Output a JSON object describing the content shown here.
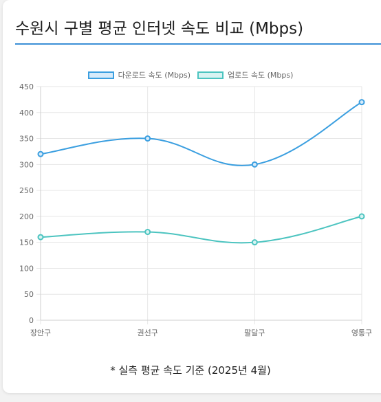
{
  "title": "수원시 구별 평균 인터넷 속도 비교 (Mbps)",
  "footnote": "* 실측 평균 속도 기준 (2025년 4월)",
  "chart_data": {
    "type": "line",
    "categories": [
      "장안구",
      "권선구",
      "팔달구",
      "영통구"
    ],
    "series": [
      {
        "name": "다운로드 속도 (Mbps)",
        "values": [
          320,
          350,
          300,
          420
        ],
        "color": "#3b9fe0",
        "fill": "#d7ebfa"
      },
      {
        "name": "업로드 속도 (Mbps)",
        "values": [
          160,
          170,
          150,
          200
        ],
        "color": "#4cc4c0",
        "fill": "#d8f3f2"
      }
    ],
    "ylim": [
      0,
      450
    ],
    "yticks": [
      0,
      50,
      100,
      150,
      200,
      250,
      300,
      350,
      400,
      450
    ],
    "grid": true,
    "legend": "top-center"
  }
}
